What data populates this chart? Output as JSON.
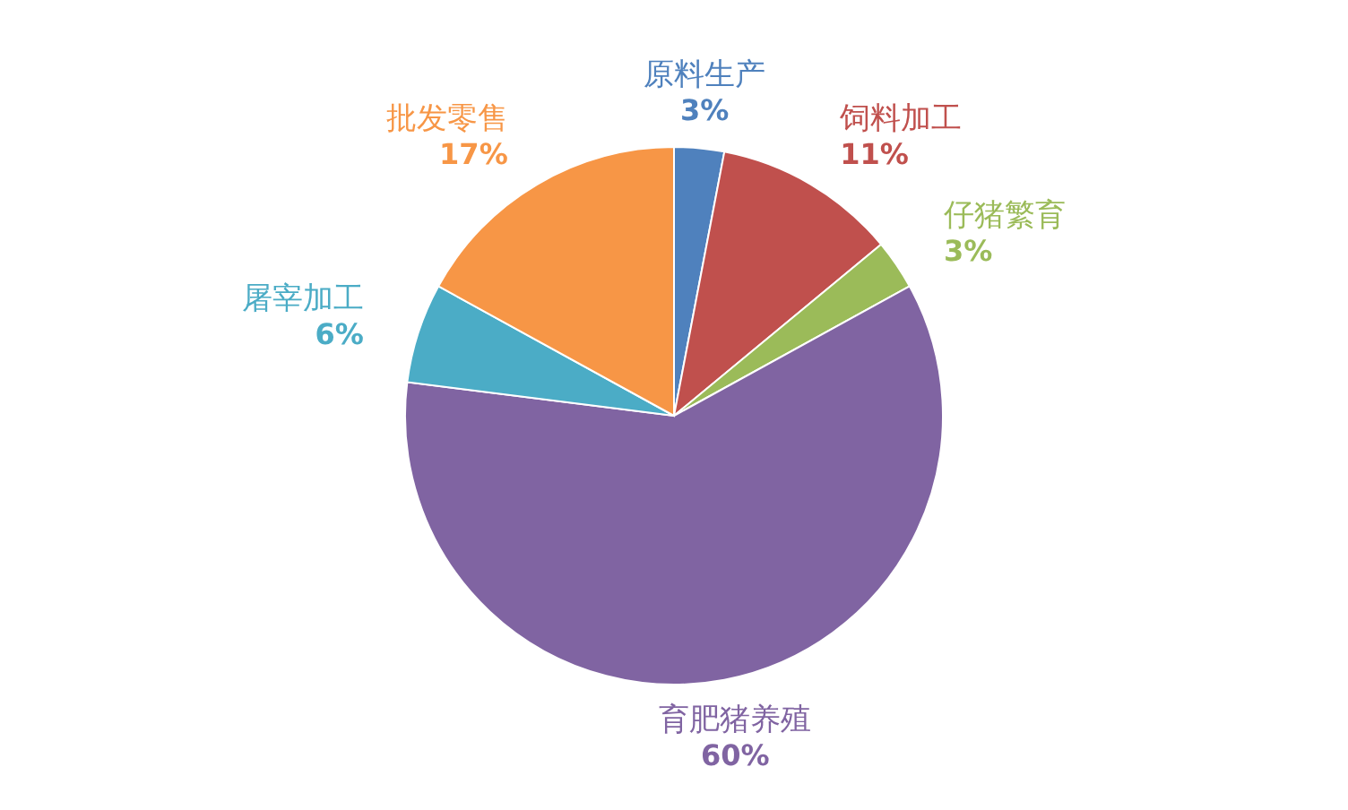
{
  "chart_data": {
    "type": "pie",
    "categories": [
      "原料生产",
      "饲料加工",
      "仔猪繁育",
      "育肥猪养殖",
      "屠宰加工",
      "批发零售"
    ],
    "values": [
      3,
      11,
      3,
      60,
      6,
      17
    ],
    "colors": [
      "#4f81bd",
      "#c0504d",
      "#9bbb59",
      "#8064a2",
      "#4bacc6",
      "#f79646"
    ],
    "value_labels": [
      "3%",
      "11%",
      "3%",
      "60%",
      "6%",
      "17%"
    ]
  }
}
